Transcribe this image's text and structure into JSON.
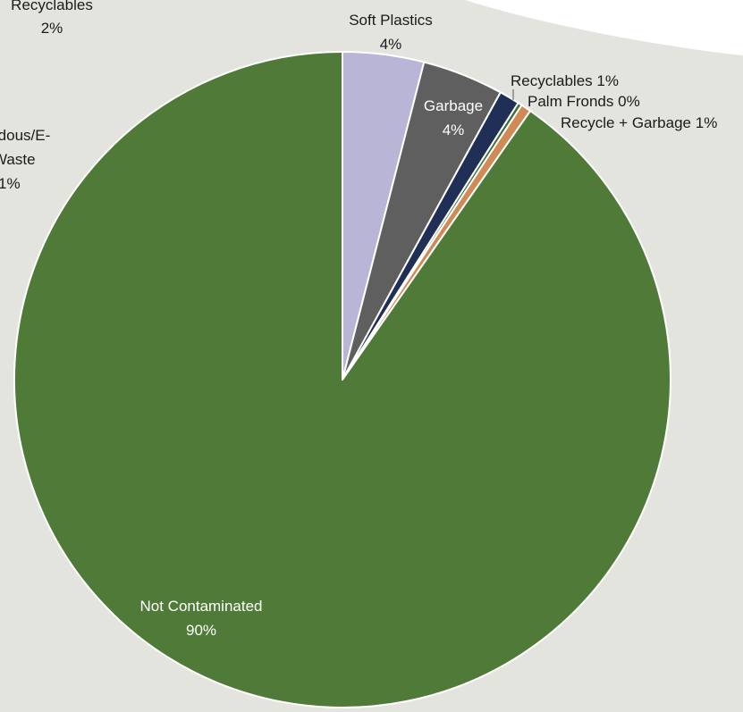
{
  "chart_data": {
    "type": "pie",
    "title": "",
    "start_angle_deg": 0,
    "direction": "clockwise",
    "slices": [
      {
        "label": "Soft Plastics",
        "value": 4,
        "display": "4%",
        "color": "#b8b5d6"
      },
      {
        "label": "Garbage",
        "value": 4,
        "display": "4%",
        "color": "#5f5f5f"
      },
      {
        "label": "Recyclables",
        "value": 1,
        "display": "1%",
        "color": "#1f2f55"
      },
      {
        "label": "Palm Fronds",
        "value": 0.2,
        "display": "0%",
        "color": "#3c6c3a"
      },
      {
        "label": "Recycle + Garbage",
        "value": 0.5,
        "display": "1%",
        "color": "#d08a56"
      },
      {
        "label": "Not Contaminated",
        "value": 90.3,
        "display": "90%",
        "color": "#507a38"
      }
    ],
    "offscreen_labels": [
      {
        "lines": [
          "Recyclables",
          "2%"
        ]
      },
      {
        "lines": [
          "rdous/E-",
          "Waste",
          "1%"
        ]
      }
    ]
  }
}
